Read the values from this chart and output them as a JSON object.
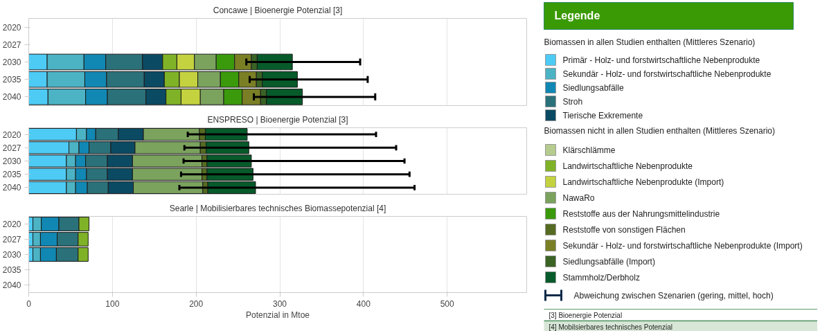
{
  "chart_data": [
    {
      "type": "bar",
      "orientation": "horizontal",
      "stacked": true,
      "title": "Concawe | Bioenergie Potenzial [3]",
      "categories": [
        "2020",
        "2027",
        "2030",
        "2035",
        "2040"
      ],
      "xlim": [
        0,
        595
      ],
      "xticks": [
        0,
        100,
        200,
        300,
        400,
        500
      ],
      "grid": "x",
      "tick_labels": "y",
      "legend": "right",
      "legend_title": "Legende",
      "annotations": [
        "Biomassen in allen Studien enthalten (Mittleres Szenario)",
        "Biomassen nicht in allen Studien enthalten (Mittleres Szenario)",
        "Abweichung zwischen Szenarien (gering, mittel, hoch)",
        "[3]  Bioenergie Potenzial",
        "[4]  Mobilsierbares technisches Potenzial"
      ],
      "series": [
        {
          "name": "Primär - Holz- und forstwirtschaftliche Nebenprodukte",
          "color": "#4dcbf5",
          "values": [
            null,
            null,
            22,
            22,
            23
          ]
        },
        {
          "name": "Sekundär - Holz- und forstwirtschaftliche Nebenprodukte",
          "color": "#4bb3c4",
          "values": [
            null,
            null,
            44,
            45,
            45
          ]
        },
        {
          "name": "Siedlungsabfälle",
          "color": "#1188b3",
          "values": [
            null,
            null,
            26,
            26,
            26
          ]
        },
        {
          "name": "Stroh",
          "color": "#2b717a",
          "values": [
            null,
            null,
            44,
            45,
            46
          ]
        },
        {
          "name": "Tierische Exkremente",
          "color": "#0b4a63",
          "values": [
            null,
            null,
            24,
            24,
            24
          ]
        },
        {
          "name": "Klärschlämme",
          "color": "#b5cc8e",
          "values": [
            null,
            null,
            null,
            null,
            null
          ]
        },
        {
          "name": "Landwirtschaftliche Nebenprodukte",
          "color": "#7fb227",
          "values": [
            null,
            null,
            17,
            18,
            18
          ]
        },
        {
          "name": "Landwirtschaftliche Nebenprodukte (Import)",
          "color": "#c4d23f",
          "values": [
            null,
            null,
            21,
            22,
            23
          ]
        },
        {
          "name": "NawaRo",
          "color": "#7ba35e",
          "values": [
            null,
            null,
            26,
            27,
            28
          ]
        },
        {
          "name": "Reststoffe aus der Nahrungsmittelindustrie",
          "color": "#3b9a0c",
          "values": [
            null,
            null,
            22,
            22,
            22
          ]
        },
        {
          "name": "Reststoffe von sonstigen Flächen",
          "color": "#556b21",
          "values": [
            null,
            null,
            null,
            null,
            null
          ]
        },
        {
          "name": "Sekundär - Holz- und forstwirtschaftliche Nebenprodukte (Import)",
          "color": "#7a7f25",
          "values": [
            null,
            null,
            20,
            21,
            22
          ]
        },
        {
          "name": "Siedlungsabfälle (Import)",
          "color": "#3a6324",
          "values": [
            null,
            null,
            7,
            7,
            7
          ]
        },
        {
          "name": "Stammholz/Derbholz",
          "color": "#075a2a",
          "values": [
            null,
            null,
            42,
            42,
            43
          ],
          "errors": [
            null,
            null,
            [
              260,
              396
            ],
            [
              264,
              405
            ],
            [
              269,
              414
            ]
          ]
        }
      ]
    },
    {
      "type": "bar",
      "orientation": "horizontal",
      "stacked": true,
      "title": "ENSPRESO | Bioenergie Potenzial [3]",
      "categories": [
        "2020",
        "2027",
        "2030",
        "2035",
        "2040"
      ],
      "xlim": [
        0,
        595
      ],
      "xticks": [
        0,
        100,
        200,
        300,
        400,
        500
      ],
      "grid": "x",
      "tick_labels": "y",
      "series": [
        {
          "color": "#4dcbf5",
          "values": [
            57,
            48,
            45,
            45,
            45
          ]
        },
        {
          "color": "#4bb3c4",
          "values": [
            12,
            12,
            11,
            11,
            11
          ]
        },
        {
          "color": "#1188b3",
          "values": [
            11,
            12,
            12,
            13,
            14
          ]
        },
        {
          "color": "#2b717a",
          "values": [
            27,
            26,
            26,
            25,
            25
          ]
        },
        {
          "color": "#0b4a63",
          "values": [
            30,
            29,
            30,
            30,
            30
          ]
        },
        {
          "color": "#7ba35e",
          "values": [
            67,
            78,
            83,
            83,
            83
          ]
        },
        {
          "color": "#556b21",
          "values": [
            7,
            7,
            6,
            6,
            6
          ]
        },
        {
          "color": "#075a2a",
          "values": [
            50,
            51,
            53,
            55,
            57
          ],
          "errors": [
            [
              190,
              415
            ],
            [
              186,
              439
            ],
            [
              185,
              449
            ],
            [
              182,
              455
            ],
            [
              180,
              461
            ]
          ]
        }
      ]
    },
    {
      "type": "bar",
      "orientation": "horizontal",
      "stacked": true,
      "title": "Searle | Mobilisierbares technisches Biomassepotenzial [4]",
      "xlabel": "Potenzial in Mtoe",
      "categories": [
        "2020",
        "2027",
        "2030",
        "2035",
        "2040"
      ],
      "xlim": [
        0,
        595
      ],
      "xticks": [
        0,
        100,
        200,
        300,
        400,
        500
      ],
      "grid": "x",
      "series": [
        {
          "color": "#4dcbf5",
          "values": [
            5,
            5,
            5,
            null,
            null
          ]
        },
        {
          "color": "#4bb3c4",
          "values": [
            10,
            9,
            9,
            null,
            null
          ]
        },
        {
          "color": "#1188b3",
          "values": [
            21,
            20,
            19,
            null,
            null
          ]
        },
        {
          "color": "#2b717a",
          "values": [
            24,
            25,
            26,
            null,
            null
          ]
        },
        {
          "color": "#7fb227",
          "values": [
            12,
            12,
            12,
            null,
            null
          ]
        }
      ]
    }
  ]
}
